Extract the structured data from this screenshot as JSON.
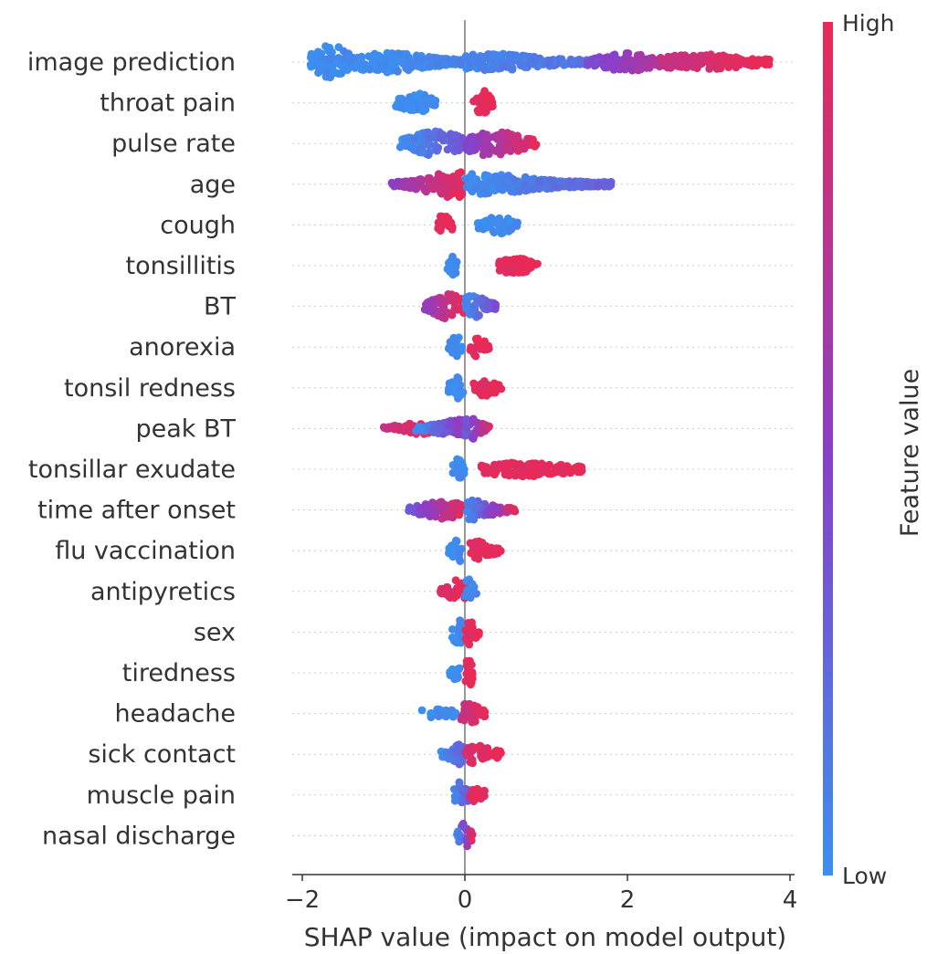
{
  "chart_data": {
    "type": "scatter",
    "subtype": "shap-beeswarm",
    "xlabel": "SHAP value (impact on model output)",
    "xlim": [
      -2.05,
      4.05
    ],
    "xticks": [
      -2,
      0,
      2,
      4
    ],
    "xtick_labels": [
      "−2",
      "0",
      "2",
      "4"
    ],
    "zero_line": 0,
    "grid": "dotted horizontal row guides",
    "colorbar": {
      "title": "Feature value",
      "high_label": "High",
      "low_label": "Low",
      "low_color": "#3b8ff0",
      "mid_color": "#8a3ec9",
      "high_color": "#ea2a55"
    },
    "features": [
      {
        "name": "image prediction",
        "clusters": [
          {
            "xmin": -1.9,
            "xmax": -1.3,
            "peak": -1.65,
            "low": 0.0,
            "high": 0.05,
            "spread": 1.0,
            "density": 1.0
          },
          {
            "xmin": -1.3,
            "xmax": 0.0,
            "peak": -1.0,
            "low": 0.0,
            "high": 0.08,
            "spread": 0.55,
            "density": 1.0
          },
          {
            "xmin": 0.0,
            "xmax": 1.5,
            "peak": 0.3,
            "low": 0.05,
            "high": 0.2,
            "spread": 0.45,
            "density": 0.9
          },
          {
            "xmin": 1.5,
            "xmax": 2.4,
            "peak": 2.0,
            "low": 0.4,
            "high": 0.7,
            "spread": 0.45,
            "density": 0.8
          },
          {
            "xmin": 2.4,
            "xmax": 3.75,
            "peak": 2.9,
            "low": 0.8,
            "high": 1.0,
            "spread": 0.4,
            "density": 0.8
          }
        ]
      },
      {
        "name": "throat pain",
        "clusters": [
          {
            "xmin": -0.85,
            "xmax": -0.35,
            "peak": -0.6,
            "low": 0.0,
            "high": 0.05,
            "spread": 0.5,
            "density": 0.8
          },
          {
            "xmin": 0.1,
            "xmax": 0.35,
            "peak": 0.22,
            "low": 0.95,
            "high": 1.0,
            "spread": 0.75,
            "density": 0.9
          }
        ]
      },
      {
        "name": "pulse rate",
        "clusters": [
          {
            "xmin": -0.8,
            "xmax": 0.0,
            "peak": -0.35,
            "low": 0.0,
            "high": 0.35,
            "spread": 0.7,
            "density": 1.0
          },
          {
            "xmin": 0.0,
            "xmax": 0.9,
            "peak": 0.35,
            "low": 0.45,
            "high": 1.0,
            "spread": 0.75,
            "density": 1.0
          }
        ]
      },
      {
        "name": "age",
        "clusters": [
          {
            "xmin": -0.9,
            "xmax": 0.0,
            "peak": -0.15,
            "low": 0.5,
            "high": 1.0,
            "spread": 0.75,
            "density": 1.0
          },
          {
            "xmin": 0.0,
            "xmax": 1.8,
            "peak": 0.2,
            "low": 0.0,
            "high": 0.3,
            "spread": 0.55,
            "density": 1.0
          }
        ]
      },
      {
        "name": "cough",
        "clusters": [
          {
            "xmin": -0.35,
            "xmax": -0.15,
            "peak": -0.25,
            "low": 0.95,
            "high": 1.0,
            "spread": 0.65,
            "density": 0.9
          },
          {
            "xmin": 0.15,
            "xmax": 0.65,
            "peak": 0.4,
            "low": 0.0,
            "high": 0.05,
            "spread": 0.45,
            "density": 0.8
          }
        ]
      },
      {
        "name": "tonsillitis",
        "clusters": [
          {
            "xmin": -0.22,
            "xmax": -0.08,
            "peak": -0.15,
            "low": 0.0,
            "high": 0.05,
            "spread": 0.6,
            "density": 0.8
          },
          {
            "xmin": 0.4,
            "xmax": 0.9,
            "peak": 0.6,
            "low": 0.95,
            "high": 1.0,
            "spread": 0.45,
            "density": 0.8
          }
        ]
      },
      {
        "name": "BT",
        "clusters": [
          {
            "xmin": -0.5,
            "xmax": 0.0,
            "peak": -0.2,
            "low": 0.55,
            "high": 1.0,
            "spread": 0.7,
            "density": 1.0
          },
          {
            "xmin": 0.0,
            "xmax": 0.4,
            "peak": 0.1,
            "low": 0.0,
            "high": 0.45,
            "spread": 0.7,
            "density": 1.0
          }
        ]
      },
      {
        "name": "anorexia",
        "clusters": [
          {
            "xmin": -0.2,
            "xmax": -0.02,
            "peak": -0.1,
            "low": 0.0,
            "high": 0.05,
            "spread": 0.65,
            "density": 0.9
          },
          {
            "xmin": 0.05,
            "xmax": 0.3,
            "peak": 0.15,
            "low": 0.95,
            "high": 1.0,
            "spread": 0.55,
            "density": 0.8
          }
        ]
      },
      {
        "name": "tonsil redness",
        "clusters": [
          {
            "xmin": -0.2,
            "xmax": -0.02,
            "peak": -0.1,
            "low": 0.0,
            "high": 0.05,
            "spread": 0.65,
            "density": 0.9
          },
          {
            "xmin": 0.1,
            "xmax": 0.45,
            "peak": 0.25,
            "low": 0.95,
            "high": 1.0,
            "spread": 0.4,
            "density": 0.7
          }
        ]
      },
      {
        "name": "peak BT",
        "clusters": [
          {
            "xmin": -1.0,
            "xmax": -0.4,
            "peak": -0.5,
            "low": 0.8,
            "high": 1.0,
            "spread": 0.3,
            "density": 0.5
          },
          {
            "xmin": -0.6,
            "xmax": 0.0,
            "peak": -0.1,
            "low": 0.0,
            "high": 0.6,
            "spread": 0.5,
            "density": 0.9
          },
          {
            "xmin": 0.0,
            "xmax": 0.3,
            "peak": 0.08,
            "low": 0.3,
            "high": 0.9,
            "spread": 0.6,
            "density": 0.9
          }
        ]
      },
      {
        "name": "tonsillar exudate",
        "clusters": [
          {
            "xmin": -0.15,
            "xmax": 0.0,
            "peak": -0.07,
            "low": 0.0,
            "high": 0.05,
            "spread": 0.65,
            "density": 0.9
          },
          {
            "xmin": 0.2,
            "xmax": 1.45,
            "peak": 0.7,
            "low": 0.95,
            "high": 1.0,
            "spread": 0.35,
            "density": 0.8
          }
        ]
      },
      {
        "name": "time after onset",
        "clusters": [
          {
            "xmin": -0.7,
            "xmax": 0.0,
            "peak": -0.25,
            "low": 0.3,
            "high": 1.0,
            "spread": 0.45,
            "density": 0.8
          },
          {
            "xmin": 0.0,
            "xmax": 0.65,
            "peak": 0.05,
            "low": 0.0,
            "high": 1.0,
            "spread": 0.55,
            "density": 0.8
          }
        ]
      },
      {
        "name": "flu vaccination",
        "clusters": [
          {
            "xmin": -0.2,
            "xmax": -0.02,
            "peak": -0.08,
            "low": 0.0,
            "high": 0.05,
            "spread": 0.65,
            "density": 0.9
          },
          {
            "xmin": 0.05,
            "xmax": 0.45,
            "peak": 0.15,
            "low": 0.95,
            "high": 1.0,
            "spread": 0.5,
            "density": 0.8
          }
        ]
      },
      {
        "name": "antipyretics",
        "clusters": [
          {
            "xmin": -0.3,
            "xmax": 0.0,
            "peak": -0.08,
            "low": 0.9,
            "high": 1.0,
            "spread": 0.65,
            "density": 0.8
          },
          {
            "xmin": 0.0,
            "xmax": 0.15,
            "peak": 0.05,
            "low": 0.0,
            "high": 0.1,
            "spread": 0.7,
            "density": 0.8
          }
        ]
      },
      {
        "name": "sex",
        "clusters": [
          {
            "xmin": -0.18,
            "xmax": 0.0,
            "peak": -0.08,
            "low": 0.0,
            "high": 0.05,
            "spread": 0.7,
            "density": 0.9
          },
          {
            "xmin": 0.0,
            "xmax": 0.18,
            "peak": 0.06,
            "low": 0.95,
            "high": 1.0,
            "spread": 0.7,
            "density": 0.9
          }
        ]
      },
      {
        "name": "tiredness",
        "clusters": [
          {
            "xmin": -0.2,
            "xmax": -0.05,
            "peak": -0.1,
            "low": 0.0,
            "high": 0.05,
            "spread": 0.4,
            "density": 0.6
          },
          {
            "xmin": 0.0,
            "xmax": 0.1,
            "peak": 0.05,
            "low": 0.95,
            "high": 1.0,
            "spread": 0.8,
            "density": 0.9
          }
        ]
      },
      {
        "name": "headache",
        "clusters": [
          {
            "xmin": -0.55,
            "xmax": -0.1,
            "peak": -0.35,
            "low": 0.0,
            "high": 0.05,
            "spread": 0.2,
            "density": 0.4
          },
          {
            "xmin": -0.05,
            "xmax": 0.25,
            "peak": 0.05,
            "low": 0.8,
            "high": 1.0,
            "spread": 0.6,
            "density": 0.9
          }
        ]
      },
      {
        "name": "sick contact",
        "clusters": [
          {
            "xmin": -0.3,
            "xmax": 0.1,
            "peak": 0.0,
            "low": 0.0,
            "high": 0.4,
            "spread": 0.65,
            "density": 0.9
          },
          {
            "xmin": 0.0,
            "xmax": 0.45,
            "peak": 0.15,
            "low": 0.9,
            "high": 1.0,
            "spread": 0.5,
            "density": 0.7
          }
        ]
      },
      {
        "name": "muscle pain",
        "clusters": [
          {
            "xmin": -0.15,
            "xmax": 0.05,
            "peak": -0.05,
            "low": 0.0,
            "high": 0.4,
            "spread": 0.75,
            "density": 0.9
          },
          {
            "xmin": 0.05,
            "xmax": 0.28,
            "peak": 0.15,
            "low": 0.95,
            "high": 1.0,
            "spread": 0.35,
            "density": 0.6
          }
        ]
      },
      {
        "name": "nasal discharge",
        "clusters": [
          {
            "xmin": -0.1,
            "xmax": 0.1,
            "peak": 0.0,
            "low": 0.0,
            "high": 1.0,
            "spread": 0.75,
            "density": 0.9
          }
        ]
      }
    ]
  }
}
